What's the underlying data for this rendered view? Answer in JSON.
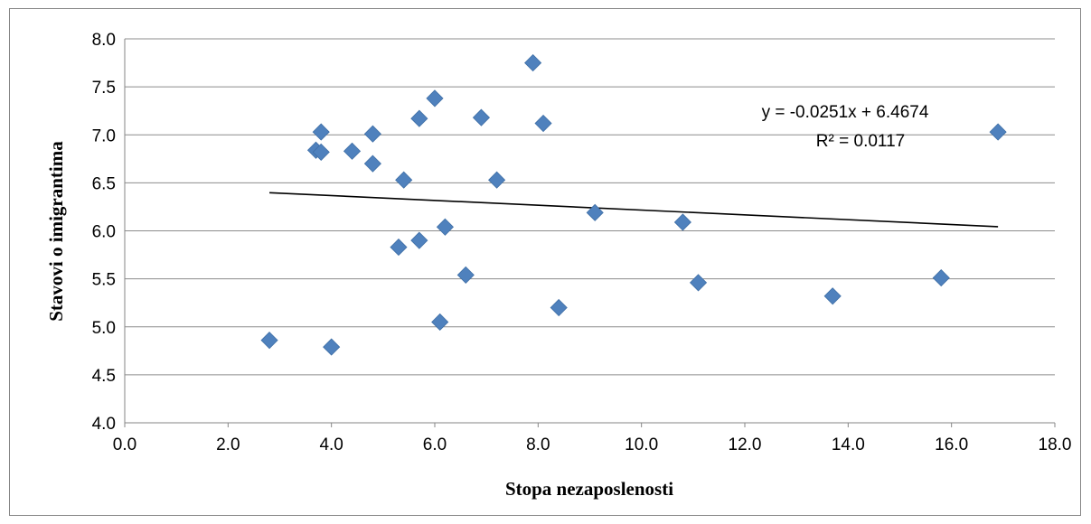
{
  "chart_data": {
    "type": "scatter",
    "xlabel": "Stopa nezaposlenosti",
    "ylabel": "Stavovi o imigrantima",
    "xlim": [
      0,
      18
    ],
    "ylim": [
      4,
      8
    ],
    "x_ticks": [
      "0.0",
      "2.0",
      "4.0",
      "6.0",
      "8.0",
      "10.0",
      "12.0",
      "14.0",
      "16.0",
      "18.0"
    ],
    "y_ticks": [
      "4.0",
      "4.5",
      "5.0",
      "5.5",
      "6.0",
      "6.5",
      "7.0",
      "7.5",
      "8.0"
    ],
    "grid": "horizontal",
    "marker_color": "#4F81BD",
    "points": [
      {
        "x": 2.8,
        "y": 4.86
      },
      {
        "x": 3.7,
        "y": 6.84
      },
      {
        "x": 3.8,
        "y": 7.03
      },
      {
        "x": 3.8,
        "y": 6.82
      },
      {
        "x": 4.0,
        "y": 4.79
      },
      {
        "x": 4.4,
        "y": 6.83
      },
      {
        "x": 4.8,
        "y": 7.01
      },
      {
        "x": 4.8,
        "y": 6.7
      },
      {
        "x": 5.3,
        "y": 5.83
      },
      {
        "x": 5.4,
        "y": 6.53
      },
      {
        "x": 5.7,
        "y": 5.9
      },
      {
        "x": 5.7,
        "y": 7.17
      },
      {
        "x": 6.0,
        "y": 7.38
      },
      {
        "x": 6.1,
        "y": 5.05
      },
      {
        "x": 6.2,
        "y": 6.04
      },
      {
        "x": 6.6,
        "y": 5.54
      },
      {
        "x": 6.9,
        "y": 7.18
      },
      {
        "x": 7.2,
        "y": 6.53
      },
      {
        "x": 7.9,
        "y": 7.75
      },
      {
        "x": 8.1,
        "y": 7.12
      },
      {
        "x": 8.4,
        "y": 5.2
      },
      {
        "x": 9.1,
        "y": 6.19
      },
      {
        "x": 10.8,
        "y": 6.09
      },
      {
        "x": 11.1,
        "y": 5.46
      },
      {
        "x": 13.7,
        "y": 5.32
      },
      {
        "x": 15.8,
        "y": 5.51
      },
      {
        "x": 16.9,
        "y": 7.03
      }
    ],
    "trendline": {
      "slope": -0.0251,
      "intercept": 6.4674,
      "x_range": [
        2.8,
        16.9
      ],
      "equation": "y = -0.0251x + 6.4674",
      "r_squared": "R² = 0.0117"
    }
  }
}
